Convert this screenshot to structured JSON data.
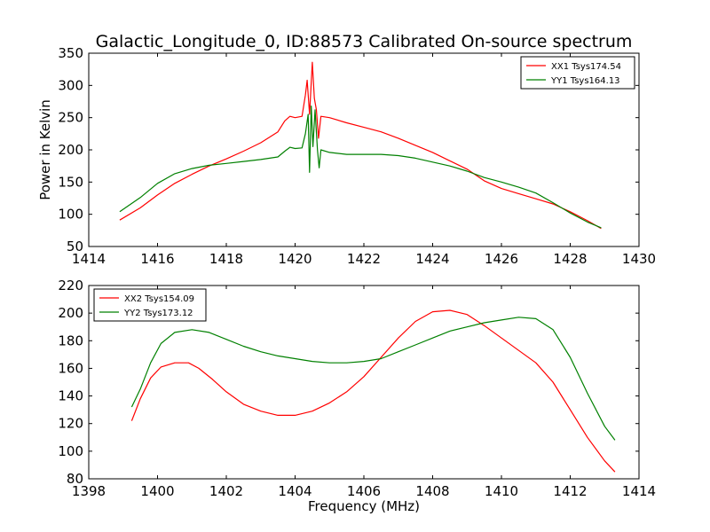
{
  "chart_data": [
    {
      "type": "line",
      "title": "Galactic_Longitude_0, ID:88573 Calibrated On-source spectrum",
      "xlabel": "",
      "ylabel": "Power in Kelvin",
      "xlim": [
        1414,
        1430
      ],
      "ylim": [
        50,
        350
      ],
      "xticks": [
        1414,
        1416,
        1418,
        1420,
        1422,
        1424,
        1426,
        1428,
        1430
      ],
      "yticks": [
        50,
        100,
        150,
        200,
        250,
        300,
        350
      ],
      "legend_position": "top-right",
      "grid": false,
      "series": [
        {
          "name": "XX1 Tsys174.54",
          "color": "#ff0000",
          "points": [
            [
              1414.9,
              91
            ],
            [
              1415.5,
              110
            ],
            [
              1416.0,
              130
            ],
            [
              1416.5,
              148
            ],
            [
              1417.0,
              162
            ],
            [
              1417.5,
              175
            ],
            [
              1418.0,
              186
            ],
            [
              1418.5,
              198
            ],
            [
              1419.0,
              211
            ],
            [
              1419.5,
              228
            ],
            [
              1419.7,
              245
            ],
            [
              1419.85,
              252
            ],
            [
              1420.0,
              250
            ],
            [
              1420.2,
              252
            ],
            [
              1420.3,
              285
            ],
            [
              1420.35,
              308
            ],
            [
              1420.42,
              255
            ],
            [
              1420.5,
              336
            ],
            [
              1420.56,
              280
            ],
            [
              1420.62,
              262
            ],
            [
              1420.68,
              218
            ],
            [
              1420.75,
              252
            ],
            [
              1421.0,
              250
            ],
            [
              1421.5,
              242
            ],
            [
              1422.0,
              235
            ],
            [
              1422.5,
              228
            ],
            [
              1423.0,
              218
            ],
            [
              1423.5,
              207
            ],
            [
              1424.0,
              196
            ],
            [
              1424.5,
              183
            ],
            [
              1425.0,
              170
            ],
            [
              1425.5,
              152
            ],
            [
              1426.0,
              140
            ],
            [
              1426.5,
              132
            ],
            [
              1427.0,
              124
            ],
            [
              1427.5,
              116
            ],
            [
              1428.0,
              104
            ],
            [
              1428.5,
              90
            ],
            [
              1428.9,
              78
            ]
          ]
        },
        {
          "name": "YY1 Tsys164.13",
          "color": "#008000",
          "points": [
            [
              1414.9,
              104
            ],
            [
              1415.5,
              126
            ],
            [
              1416.0,
              148
            ],
            [
              1416.5,
              163
            ],
            [
              1417.0,
              171
            ],
            [
              1417.5,
              176
            ],
            [
              1418.0,
              179
            ],
            [
              1418.5,
              182
            ],
            [
              1419.0,
              185
            ],
            [
              1419.5,
              189
            ],
            [
              1419.7,
              198
            ],
            [
              1419.85,
              204
            ],
            [
              1420.0,
              202
            ],
            [
              1420.2,
              203
            ],
            [
              1420.3,
              225
            ],
            [
              1420.38,
              255
            ],
            [
              1420.42,
              165
            ],
            [
              1420.47,
              268
            ],
            [
              1420.52,
              205
            ],
            [
              1420.58,
              262
            ],
            [
              1420.65,
              200
            ],
            [
              1420.7,
              172
            ],
            [
              1420.75,
              200
            ],
            [
              1421.0,
              196
            ],
            [
              1421.5,
              193
            ],
            [
              1422.0,
              193
            ],
            [
              1422.5,
              193
            ],
            [
              1423.0,
              191
            ],
            [
              1423.5,
              187
            ],
            [
              1424.0,
              181
            ],
            [
              1424.5,
              175
            ],
            [
              1425.0,
              167
            ],
            [
              1425.5,
              157
            ],
            [
              1426.0,
              150
            ],
            [
              1426.5,
              142
            ],
            [
              1427.0,
              133
            ],
            [
              1427.5,
              118
            ],
            [
              1428.0,
              102
            ],
            [
              1428.5,
              88
            ],
            [
              1428.9,
              79
            ]
          ]
        }
      ]
    },
    {
      "type": "line",
      "title": "",
      "xlabel": "Frequency (MHz)",
      "ylabel": "",
      "xlim": [
        1398,
        1414
      ],
      "ylim": [
        80,
        220
      ],
      "xticks": [
        1398,
        1400,
        1402,
        1404,
        1406,
        1408,
        1410,
        1412,
        1414
      ],
      "yticks": [
        80,
        100,
        120,
        140,
        160,
        180,
        200,
        220
      ],
      "legend_position": "top-left",
      "grid": false,
      "series": [
        {
          "name": "XX2 Tsys154.09",
          "color": "#ff0000",
          "points": [
            [
              1399.25,
              122
            ],
            [
              1399.5,
              138
            ],
            [
              1399.8,
              153
            ],
            [
              1400.1,
              161
            ],
            [
              1400.5,
              164
            ],
            [
              1400.9,
              164
            ],
            [
              1401.2,
              160
            ],
            [
              1401.6,
              152
            ],
            [
              1402.0,
              143
            ],
            [
              1402.5,
              134
            ],
            [
              1403.0,
              129
            ],
            [
              1403.5,
              126
            ],
            [
              1404.0,
              126
            ],
            [
              1404.5,
              129
            ],
            [
              1405.0,
              135
            ],
            [
              1405.5,
              143
            ],
            [
              1406.0,
              154
            ],
            [
              1406.5,
              168
            ],
            [
              1407.0,
              182
            ],
            [
              1407.5,
              194
            ],
            [
              1408.0,
              201
            ],
            [
              1408.5,
              202
            ],
            [
              1409.0,
              199
            ],
            [
              1409.5,
              191
            ],
            [
              1410.0,
              182
            ],
            [
              1410.5,
              173
            ],
            [
              1411.0,
              164
            ],
            [
              1411.5,
              150
            ],
            [
              1412.0,
              130
            ],
            [
              1412.5,
              110
            ],
            [
              1413.0,
              93
            ],
            [
              1413.3,
              85
            ]
          ]
        },
        {
          "name": "YY2 Tsys173.12",
          "color": "#008000",
          "points": [
            [
              1399.25,
              132
            ],
            [
              1399.5,
              145
            ],
            [
              1399.8,
              164
            ],
            [
              1400.1,
              178
            ],
            [
              1400.5,
              186
            ],
            [
              1401.0,
              188
            ],
            [
              1401.5,
              186
            ],
            [
              1402.0,
              181
            ],
            [
              1402.5,
              176
            ],
            [
              1403.0,
              172
            ],
            [
              1403.5,
              169
            ],
            [
              1404.0,
              167
            ],
            [
              1404.5,
              165
            ],
            [
              1405.0,
              164
            ],
            [
              1405.5,
              164
            ],
            [
              1406.0,
              165
            ],
            [
              1406.5,
              167
            ],
            [
              1407.0,
              172
            ],
            [
              1407.5,
              177
            ],
            [
              1408.0,
              182
            ],
            [
              1408.5,
              187
            ],
            [
              1409.0,
              190
            ],
            [
              1409.5,
              193
            ],
            [
              1410.0,
              195
            ],
            [
              1410.5,
              197
            ],
            [
              1411.0,
              196
            ],
            [
              1411.5,
              188
            ],
            [
              1412.0,
              168
            ],
            [
              1412.5,
              142
            ],
            [
              1413.0,
              118
            ],
            [
              1413.3,
              108
            ]
          ]
        }
      ]
    }
  ]
}
